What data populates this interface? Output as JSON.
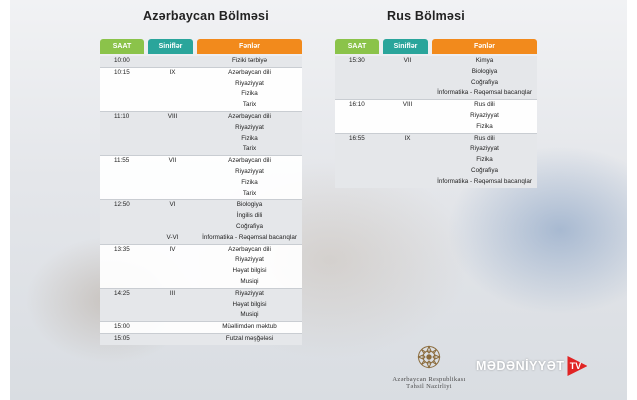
{
  "az": {
    "title": "Azərbaycan Bölməsi",
    "headers": {
      "saat": "SAAT",
      "sinif": "Siniflər",
      "fenn": "Fənlər"
    },
    "rows": [
      {
        "saat": "10:00",
        "sinif": "",
        "fenn": "Fiziki tərbiyə",
        "shade": true,
        "sep": false
      },
      {
        "saat": "10:15",
        "sinif": "IX",
        "fenn": "Azərbaycan dili",
        "shade": false,
        "sep": true
      },
      {
        "saat": "",
        "sinif": "",
        "fenn": "Riyaziyyat",
        "shade": false,
        "sep": false
      },
      {
        "saat": "",
        "sinif": "",
        "fenn": "Fizika",
        "shade": false,
        "sep": false
      },
      {
        "saat": "",
        "sinif": "",
        "fenn": "Tarix",
        "shade": false,
        "sep": false
      },
      {
        "saat": "11:10",
        "sinif": "VIII",
        "fenn": "Azərbaycan dili",
        "shade": true,
        "sep": true
      },
      {
        "saat": "",
        "sinif": "",
        "fenn": "Riyaziyyat",
        "shade": true,
        "sep": false
      },
      {
        "saat": "",
        "sinif": "",
        "fenn": "Fizika",
        "shade": true,
        "sep": false
      },
      {
        "saat": "",
        "sinif": "",
        "fenn": "Tarix",
        "shade": true,
        "sep": false
      },
      {
        "saat": "11:55",
        "sinif": "VII",
        "fenn": "Azərbaycan dili",
        "shade": false,
        "sep": true
      },
      {
        "saat": "",
        "sinif": "",
        "fenn": "Riyaziyyat",
        "shade": false,
        "sep": false
      },
      {
        "saat": "",
        "sinif": "",
        "fenn": "Fizika",
        "shade": false,
        "sep": false
      },
      {
        "saat": "",
        "sinif": "",
        "fenn": "Tarix",
        "shade": false,
        "sep": false
      },
      {
        "saat": "12:50",
        "sinif": "VI",
        "fenn": "Biologiya",
        "shade": true,
        "sep": true
      },
      {
        "saat": "",
        "sinif": "",
        "fenn": "İngilis dili",
        "shade": true,
        "sep": false
      },
      {
        "saat": "",
        "sinif": "",
        "fenn": "Coğrafiya",
        "shade": true,
        "sep": false
      },
      {
        "saat": "",
        "sinif": "V-VI",
        "fenn": "İnformatika - Rəqəmsal bacarıqlar",
        "shade": true,
        "sep": false
      },
      {
        "saat": "13:35",
        "sinif": "IV",
        "fenn": "Azərbaycan dili",
        "shade": false,
        "sep": true
      },
      {
        "saat": "",
        "sinif": "",
        "fenn": "Riyaziyyat",
        "shade": false,
        "sep": false
      },
      {
        "saat": "",
        "sinif": "",
        "fenn": "Həyat bilgisi",
        "shade": false,
        "sep": false
      },
      {
        "saat": "",
        "sinif": "",
        "fenn": "Musiqi",
        "shade": false,
        "sep": false
      },
      {
        "saat": "14:25",
        "sinif": "III",
        "fenn": "Riyaziyyat",
        "shade": true,
        "sep": true
      },
      {
        "saat": "",
        "sinif": "",
        "fenn": "Həyat bilgisi",
        "shade": true,
        "sep": false
      },
      {
        "saat": "",
        "sinif": "",
        "fenn": "Musiqi",
        "shade": true,
        "sep": false
      },
      {
        "saat": "15:00",
        "sinif": "",
        "fenn": "Müəllimdən məktub",
        "shade": false,
        "sep": true
      },
      {
        "saat": "15:05",
        "sinif": "",
        "fenn": "Futzal məşğələsi",
        "shade": true,
        "sep": true
      }
    ]
  },
  "rus": {
    "title": "Rus Bölməsi",
    "headers": {
      "saat": "SAAT",
      "sinif": "Siniflər",
      "fenn": "Fənlər"
    },
    "rows": [
      {
        "saat": "15:30",
        "sinif": "VII",
        "fenn": "Kimya",
        "shade": true,
        "sep": false
      },
      {
        "saat": "",
        "sinif": "",
        "fenn": "Biologiya",
        "shade": true,
        "sep": false
      },
      {
        "saat": "",
        "sinif": "",
        "fenn": "Coğrafiya",
        "shade": true,
        "sep": false
      },
      {
        "saat": "",
        "sinif": "",
        "fenn": "İnformatika - Rəqəmsal bacarıqlar",
        "shade": true,
        "sep": false
      },
      {
        "saat": "16:10",
        "sinif": "VIII",
        "fenn": "Rus dili",
        "shade": false,
        "sep": true
      },
      {
        "saat": "",
        "sinif": "",
        "fenn": "Riyaziyyat",
        "shade": false,
        "sep": false
      },
      {
        "saat": "",
        "sinif": "",
        "fenn": "Fizika",
        "shade": false,
        "sep": false
      },
      {
        "saat": "16:55",
        "sinif": "IX",
        "fenn": "Rus dili",
        "shade": true,
        "sep": true
      },
      {
        "saat": "",
        "sinif": "",
        "fenn": "Riyaziyyat",
        "shade": true,
        "sep": false
      },
      {
        "saat": "",
        "sinif": "",
        "fenn": "Fizika",
        "shade": true,
        "sep": false
      },
      {
        "saat": "",
        "sinif": "",
        "fenn": "Coğrafiya",
        "shade": true,
        "sep": false
      },
      {
        "saat": "",
        "sinif": "",
        "fenn": "İnformatika - Rəqəmsal bacarıqlar",
        "shade": true,
        "sep": false
      }
    ]
  },
  "logo": {
    "line1": "Azərbaycan Respublikası",
    "line2": "Təhsil Nazirliyi",
    "icon": "ministry-emblem-icon",
    "color": "#8a6a3a"
  },
  "watermark": {
    "name": "MƏDƏNİYYƏT",
    "badge": "TV",
    "badge_color": "#e02424"
  }
}
